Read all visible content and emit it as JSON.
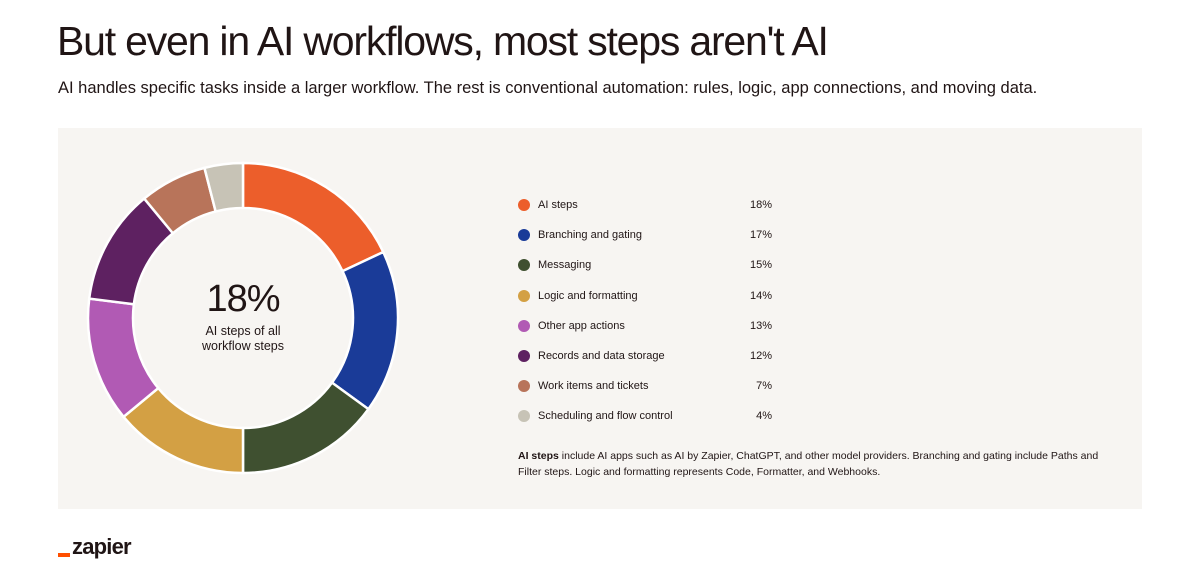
{
  "header": {
    "title": "But even in AI workflows, most steps aren't AI",
    "subtitle": "AI handles specific tasks inside a larger workflow. The rest is conventional automation: rules, logic, app connections, and moving data."
  },
  "center": {
    "value": "18%",
    "label_line1": "AI steps of all",
    "label_line2": "workflow steps"
  },
  "chart_data": {
    "type": "pie",
    "donut": true,
    "categories": [
      "AI steps",
      "Branching and gating",
      "Messaging",
      "Logic and formatting",
      "Other app actions",
      "Records and data storage",
      "Work items and tickets",
      "Scheduling and flow control"
    ],
    "values": [
      18,
      17,
      15,
      14,
      13,
      12,
      7,
      4
    ],
    "value_labels": [
      "18%",
      "17%",
      "15%",
      "14%",
      "13%",
      "12%",
      "7%",
      "4%"
    ],
    "colors": [
      "#ec5e2b",
      "#1a3b98",
      "#3f5030",
      "#d3a044",
      "#b15ab4",
      "#5e2161",
      "#b8745a",
      "#c7c3b6"
    ],
    "legend_position": "right"
  },
  "footnote": {
    "bold": "AI steps",
    "text": " include AI apps such as AI by Zapier, ChatGPT, and other model providers. Branching and gating include Paths and Filter steps. Logic and formatting represents Code, Formatter, and Webhooks."
  },
  "brand": {
    "logo_text": "zapier",
    "accent": "#ff4f00"
  }
}
